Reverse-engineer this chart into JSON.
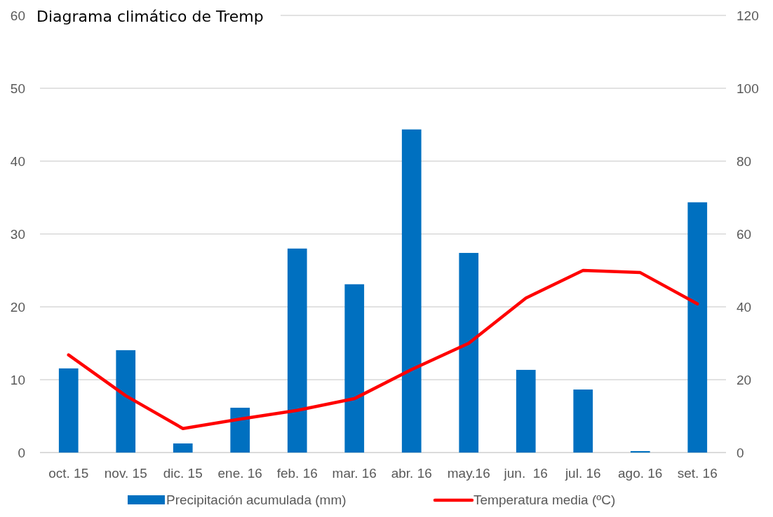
{
  "chart_data": {
    "type": "bar",
    "title": "Diagrama climático de Tremp",
    "categories": [
      "oct. 15",
      "nov. 15",
      "dic. 15",
      "ene. 16",
      "feb. 16",
      "mar. 16",
      "abr. 16",
      "may.16",
      "jun.  16",
      "jul. 16",
      "ago. 16",
      "set. 16"
    ],
    "series": [
      {
        "name": "Precipitación acumulada (mm)",
        "axis": "y2",
        "color": "#0070c0",
        "values": [
          23.1,
          28.1,
          2.5,
          12.3,
          56,
          46.2,
          88.7,
          54.8,
          22.7,
          17.3,
          0.4,
          68.7
        ]
      },
      {
        "name": "Temperatura media (ºC)",
        "type": "line",
        "axis": "y",
        "color": "#ff0000",
        "values": [
          13.4,
          7.8,
          3.3,
          4.6,
          5.8,
          7.4,
          11.4,
          15.0,
          21.2,
          25.0,
          24.7,
          20.4
        ]
      }
    ],
    "ylim": [
      0,
      60
    ],
    "yticks": [
      0,
      10,
      20,
      30,
      40,
      50,
      60
    ],
    "y2lim": [
      0,
      120
    ],
    "y2ticks": [
      0,
      20,
      40,
      60,
      80,
      100,
      120
    ],
    "grid": "y",
    "legend": "bottom",
    "marker": "none",
    "line_style": "solid"
  }
}
